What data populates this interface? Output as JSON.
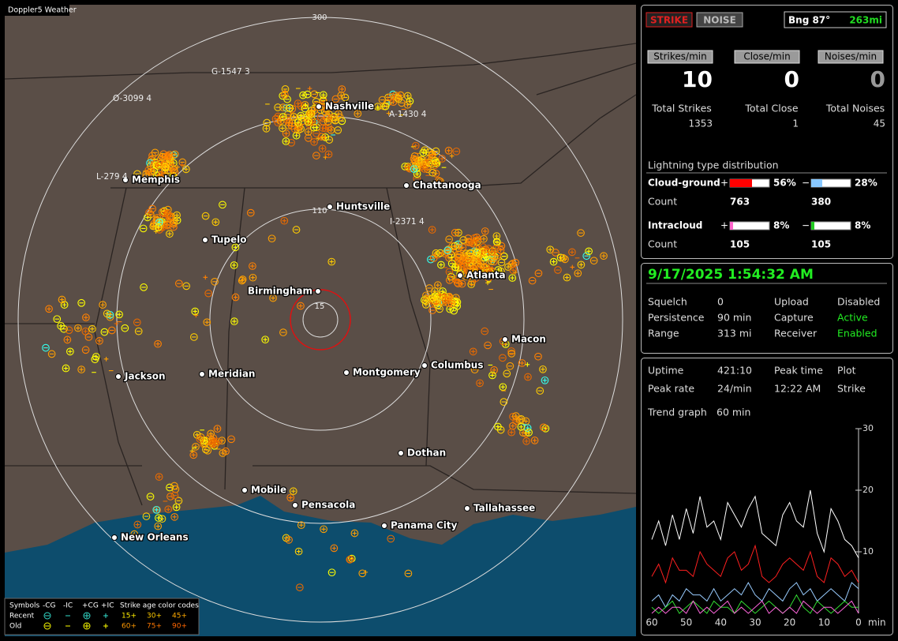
{
  "window_title": "Doppler5 Weather",
  "map": {
    "ring_labels": [
      300,
      110,
      15
    ],
    "stations": [
      "G-1547 3",
      "O-3099 4",
      "A-1430 4",
      "L-279 4",
      "I-2371 4"
    ],
    "cities": [
      "Nashville",
      "Memphis",
      "Chattanooga",
      "Huntsville",
      "Tupelo",
      "Atlanta",
      "Birmingham",
      "Macon",
      "Jackson",
      "Meridian",
      "Montgomery",
      "Columbus",
      "Dothan",
      "Mobile",
      "Pensacola",
      "Tallahassee",
      "Panama City",
      "New Orleans"
    ],
    "legend": {
      "header": [
        "Symbols",
        "-CG",
        "-IC",
        "+CG",
        "+IC",
        "Strike age color codes"
      ],
      "rows": [
        {
          "label": "Recent",
          "ages": [
            "15+",
            "30+",
            "45+"
          ]
        },
        {
          "label": "Old",
          "ages": [
            "60+",
            "75+",
            "90+"
          ]
        }
      ]
    }
  },
  "status": {
    "mode_buttons": [
      "STRIKE",
      "NOISE"
    ],
    "bearing": "Bng 87°",
    "distance": "263mi",
    "rates": [
      {
        "label": "Strikes/min",
        "value": 10
      },
      {
        "label": "Close/min",
        "value": 0
      },
      {
        "label": "Noises/min",
        "value": 0
      }
    ],
    "totals": [
      {
        "label": "Total Strikes",
        "value": 1353
      },
      {
        "label": "Total Close",
        "value": 1
      },
      {
        "label": "Total Noises",
        "value": 45
      }
    ],
    "distribution": {
      "title": "Lightning type distribution",
      "count_label": "Count",
      "rows": [
        {
          "label": "Cloud-ground",
          "plus": {
            "sign": "+",
            "percent": 56,
            "percent_label": "56%",
            "count": 763,
            "color": "#ff0000"
          },
          "minus": {
            "sign": "−",
            "percent": 28,
            "percent_label": "28%",
            "count": 380,
            "color": "#88c8ff"
          }
        },
        {
          "label": "Intracloud",
          "plus": {
            "sign": "+",
            "percent": 8,
            "percent_label": "8%",
            "count": 105,
            "color": "#ff66cc"
          },
          "minus": {
            "sign": "−",
            "percent": 8,
            "percent_label": "8%",
            "count": 105,
            "color": "#22cc22"
          }
        }
      ]
    }
  },
  "clock": {
    "datetime": "9/17/2025 1:54:32 AM",
    "settings": [
      [
        "Squelch",
        "0",
        "Upload",
        "Disabled"
      ],
      [
        "Persistence",
        "90 min",
        "Capture",
        "Active"
      ],
      [
        "Range",
        "313 mi",
        "Receiver",
        "Enabled"
      ]
    ]
  },
  "stats": {
    "rows": [
      [
        "Uptime",
        "421:10",
        "Peak time",
        "Plot"
      ],
      [
        "Peak rate",
        "24/min",
        "12:22 AM",
        "Strike"
      ]
    ],
    "trend_label": "Trend graph",
    "trend_window": "60 min"
  },
  "chart_data": {
    "type": "line",
    "x_label": "min",
    "x": [
      60,
      58,
      56,
      54,
      52,
      50,
      48,
      46,
      44,
      42,
      40,
      38,
      36,
      34,
      32,
      30,
      28,
      26,
      24,
      22,
      20,
      18,
      16,
      14,
      12,
      10,
      8,
      6,
      4,
      2,
      0
    ],
    "xlim": [
      60,
      0
    ],
    "xticks": [
      60,
      50,
      40,
      30,
      20,
      10,
      0
    ],
    "ylim": [
      0,
      30
    ],
    "yticks": [
      10,
      20,
      30
    ],
    "series": [
      {
        "color": "#ffffff",
        "values": [
          12,
          15,
          11,
          16,
          12,
          17,
          13,
          19,
          14,
          15,
          12,
          18,
          16,
          14,
          17,
          19,
          13,
          12,
          11,
          16,
          18,
          15,
          14,
          20,
          13,
          10,
          17,
          15,
          12,
          11,
          9
        ]
      },
      {
        "color": "#ff2020",
        "values": [
          6,
          8,
          5,
          9,
          7,
          7,
          6,
          10,
          8,
          7,
          6,
          9,
          10,
          7,
          8,
          11,
          6,
          5,
          6,
          8,
          9,
          8,
          7,
          10,
          6,
          5,
          9,
          8,
          6,
          7,
          5
        ]
      },
      {
        "color": "#99ccff",
        "values": [
          2,
          3,
          1,
          3,
          2,
          4,
          3,
          3,
          2,
          4,
          2,
          3,
          4,
          3,
          5,
          3,
          2,
          4,
          3,
          2,
          4,
          5,
          3,
          4,
          2,
          3,
          4,
          3,
          2,
          5,
          4
        ]
      },
      {
        "color": "#33dd33",
        "values": [
          1,
          0,
          1,
          2,
          0,
          1,
          2,
          1,
          0,
          2,
          1,
          1,
          0,
          2,
          1,
          0,
          1,
          2,
          1,
          0,
          1,
          3,
          1,
          0,
          2,
          1,
          0,
          1,
          2,
          1,
          1
        ]
      },
      {
        "color": "#ff66dd",
        "values": [
          0,
          1,
          0,
          1,
          1,
          0,
          2,
          0,
          1,
          0,
          1,
          2,
          0,
          1,
          0,
          1,
          2,
          0,
          1,
          0,
          1,
          0,
          2,
          1,
          0,
          1,
          1,
          0,
          1,
          2,
          0
        ]
      }
    ]
  }
}
